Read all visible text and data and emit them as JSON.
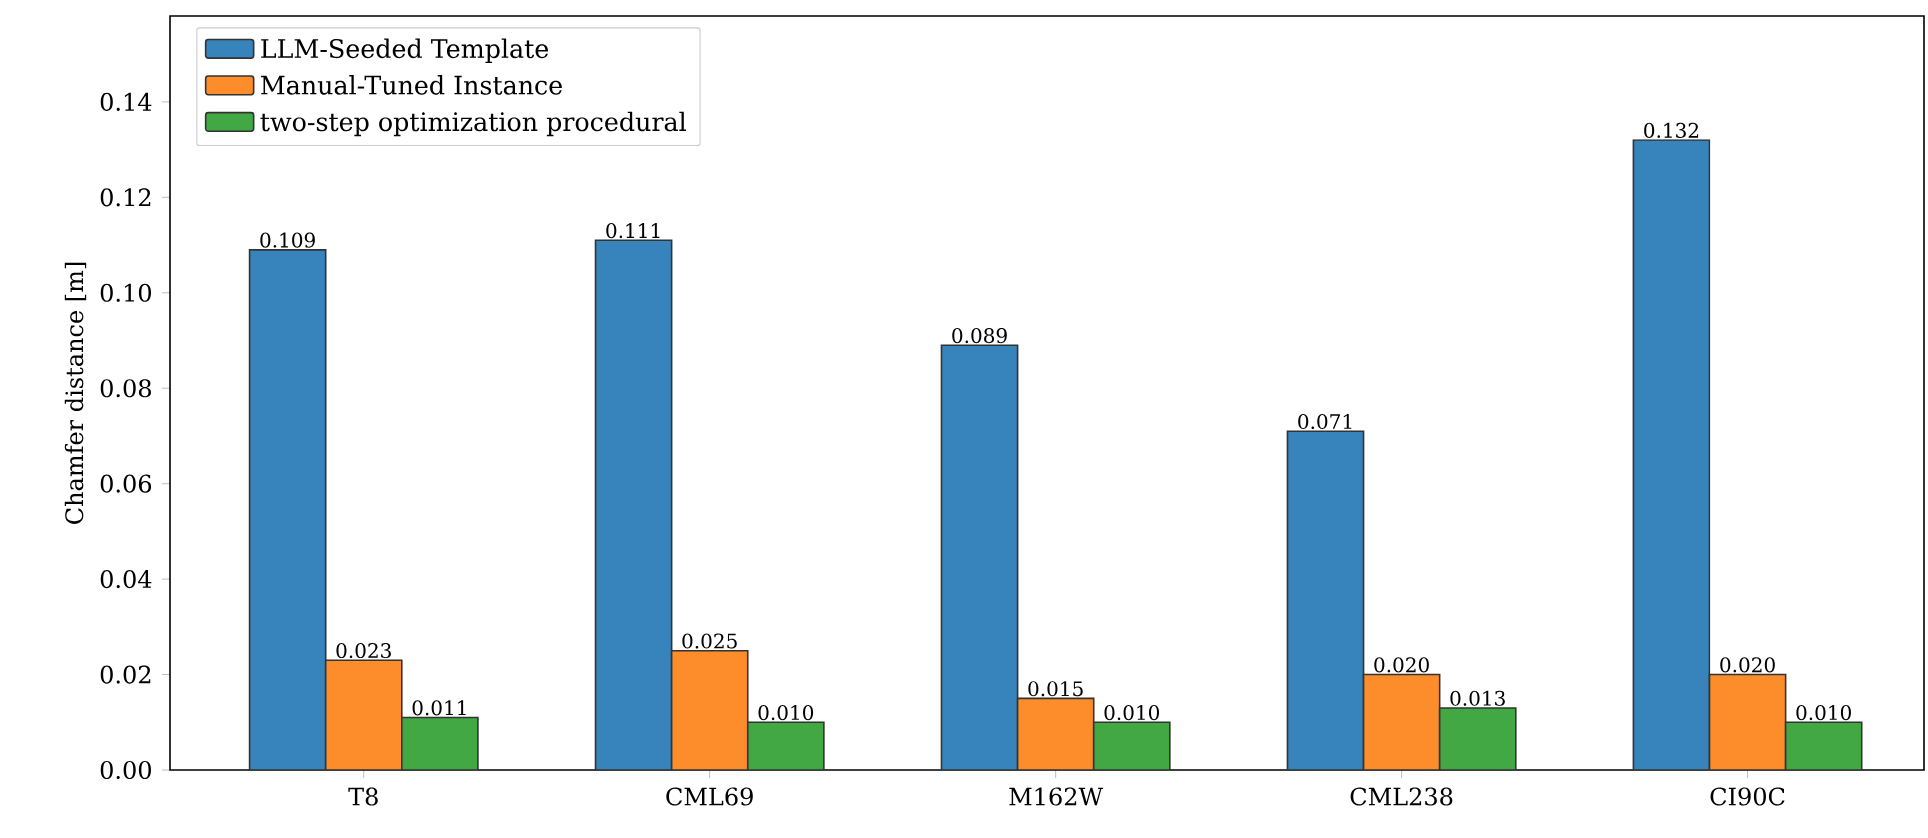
{
  "chart_data": {
    "type": "bar",
    "ylabel": "Chamfer distance [m]",
    "categories": [
      "T8",
      "CML69",
      "M162W",
      "CML238",
      "CI90C"
    ],
    "series": [
      {
        "name": "LLM-Seeded Template",
        "color": "#3783bb",
        "values": [
          0.109,
          0.111,
          0.089,
          0.071,
          0.132
        ],
        "value_labels": [
          "0.109",
          "0.111",
          "0.089",
          "0.071",
          "0.132"
        ]
      },
      {
        "name": "Manual-Tuned Instance",
        "color": "#fd8c2a",
        "values": [
          0.023,
          0.025,
          0.015,
          0.02,
          0.02
        ],
        "value_labels": [
          "0.023",
          "0.025",
          "0.015",
          "0.020",
          "0.020"
        ]
      },
      {
        "name": "two-step optimization procedural",
        "color": "#41a843",
        "values": [
          0.011,
          0.01,
          0.01,
          0.013,
          0.01
        ],
        "value_labels": [
          "0.011",
          "0.010",
          "0.010",
          "0.013",
          "0.010"
        ]
      }
    ],
    "ylim": [
      0,
      0.158
    ],
    "yticks": [
      {
        "value": 0,
        "label": "0.00"
      },
      {
        "value": 0.02,
        "label": "0.02"
      },
      {
        "value": 0.04,
        "label": "0.04"
      },
      {
        "value": 0.06,
        "label": "0.06"
      },
      {
        "value": 0.08,
        "label": "0.08"
      },
      {
        "value": 0.1,
        "label": "0.10"
      },
      {
        "value": 0.12,
        "label": "0.12"
      },
      {
        "value": 0.14,
        "label": "0.14"
      }
    ],
    "legend": "top left",
    "grid": false
  }
}
